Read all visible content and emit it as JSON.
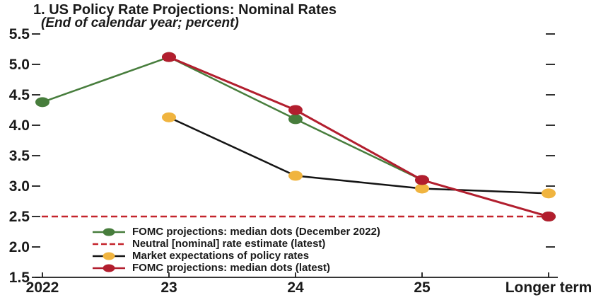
{
  "chart_data": {
    "type": "line",
    "title": "1. US Policy Rate Projections: Nominal Rates",
    "subtitle": "(End of calendar year; percent)",
    "categories": [
      "2022",
      "23",
      "24",
      "25",
      "Longer term"
    ],
    "y_ticks": [
      "5.5",
      "5.0",
      "4.5",
      "4.0",
      "3.5",
      "3.0",
      "2.5",
      "2.0",
      "1.5"
    ],
    "ylim": [
      1.5,
      5.5
    ],
    "xlabel": "",
    "ylabel": "",
    "grid": false,
    "axis_color": "#1a1a1a",
    "legend_position": "inside-bottom-left",
    "series": [
      {
        "name": "FOMC projections: median dots (December 2022)",
        "type": "line-dot",
        "line_color": "#477d3c",
        "dot_color": "#477d3c",
        "line_width": 2.5,
        "points": [
          [
            0,
            4.38
          ],
          [
            1,
            5.12
          ],
          [
            2,
            4.1
          ],
          [
            3,
            3.1
          ],
          [
            4,
            2.5
          ]
        ]
      },
      {
        "name": "Neutral [nominal] rate estimate (latest)",
        "type": "dashed-hline",
        "line_color": "#c4242c",
        "line_width": 2.5,
        "value": 2.5
      },
      {
        "name": "Market expectations of policy rates",
        "type": "line-dot",
        "line_color": "#141414",
        "dot_color": "#f0b43f",
        "line_width": 2.5,
        "points": [
          [
            1,
            4.13
          ],
          [
            2,
            3.17
          ],
          [
            3,
            2.96
          ],
          [
            4,
            2.88
          ]
        ]
      },
      {
        "name": "FOMC projections: median dots (latest)",
        "type": "line-dot",
        "line_color": "#b21e2e",
        "dot_color": "#b21e2e",
        "line_width": 3,
        "points": [
          [
            1,
            5.12
          ],
          [
            2,
            4.25
          ],
          [
            3,
            3.1
          ],
          [
            4,
            2.5
          ]
        ]
      }
    ],
    "legend": [
      {
        "label": "FOMC projections: median dots (December 2022)",
        "type": "line-dot",
        "line_color": "#477d3c",
        "dot_color": "#477d3c"
      },
      {
        "label": "Neutral [nominal] rate estimate (latest)",
        "type": "dashes",
        "line_color": "#c4242c"
      },
      {
        "label": "Market expectations of policy rates",
        "type": "line-dot",
        "line_color": "#141414",
        "dot_color": "#f0b43f"
      },
      {
        "label": "FOMC projections: median dots (latest)",
        "type": "line-dot",
        "line_color": "#b21e2e",
        "dot_color": "#b21e2e"
      }
    ]
  }
}
